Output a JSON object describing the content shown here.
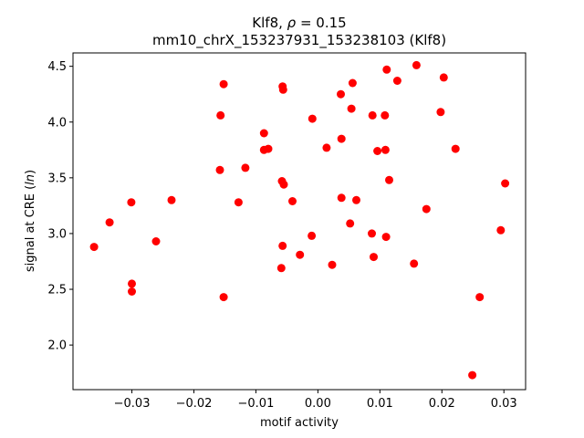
{
  "chart_data": {
    "type": "scatter",
    "title_line1_prefix": "Klf8, ",
    "title_line1_rho": "ρ",
    "title_line1_suffix": " = 0.15",
    "title_line2": "mm10_chrX_153237931_153238103 (Klf8)",
    "xlabel": "motif activity",
    "ylabel_prefix": "signal at CRE (",
    "ylabel_italic": "ln",
    "ylabel_suffix": ")",
    "xlim": [
      -0.0395,
      0.0335
    ],
    "ylim": [
      1.6,
      4.62
    ],
    "xticks": [
      -0.03,
      -0.02,
      -0.01,
      0.0,
      0.01,
      0.02,
      0.03
    ],
    "xtick_labels": [
      "−0.03",
      "−0.02",
      "−0.01",
      "0.00",
      "0.01",
      "0.02",
      "0.03"
    ],
    "yticks": [
      2.0,
      2.5,
      3.0,
      3.5,
      4.0,
      4.5
    ],
    "ytick_labels": [
      "2.0",
      "2.5",
      "3.0",
      "3.5",
      "4.0",
      "4.5"
    ],
    "grid": false,
    "marker_color": "#ff0000",
    "points": [
      {
        "x": -0.0361,
        "y": 2.88
      },
      {
        "x": -0.0336,
        "y": 3.1
      },
      {
        "x": -0.0301,
        "y": 3.28
      },
      {
        "x": -0.03,
        "y": 2.55
      },
      {
        "x": -0.03,
        "y": 2.48
      },
      {
        "x": -0.0261,
        "y": 2.93
      },
      {
        "x": -0.0236,
        "y": 3.3
      },
      {
        "x": -0.0157,
        "y": 4.06
      },
      {
        "x": -0.0158,
        "y": 3.57
      },
      {
        "x": -0.0152,
        "y": 4.34
      },
      {
        "x": -0.0152,
        "y": 2.43
      },
      {
        "x": -0.0128,
        "y": 3.28
      },
      {
        "x": -0.0117,
        "y": 3.59
      },
      {
        "x": -0.0087,
        "y": 3.9
      },
      {
        "x": -0.0087,
        "y": 3.75
      },
      {
        "x": -0.008,
        "y": 3.76
      },
      {
        "x": -0.0057,
        "y": 4.32
      },
      {
        "x": -0.0056,
        "y": 4.29
      },
      {
        "x": -0.0058,
        "y": 3.47
      },
      {
        "x": -0.0055,
        "y": 3.44
      },
      {
        "x": -0.0041,
        "y": 3.29
      },
      {
        "x": -0.0057,
        "y": 2.89
      },
      {
        "x": -0.0059,
        "y": 2.69
      },
      {
        "x": -0.0029,
        "y": 2.81
      },
      {
        "x": -0.0009,
        "y": 4.03
      },
      {
        "x": -0.001,
        "y": 2.98
      },
      {
        "x": 0.0014,
        "y": 3.77
      },
      {
        "x": 0.0023,
        "y": 2.72
      },
      {
        "x": 0.0037,
        "y": 4.25
      },
      {
        "x": 0.0038,
        "y": 3.85
      },
      {
        "x": 0.0038,
        "y": 3.32
      },
      {
        "x": 0.0056,
        "y": 4.35
      },
      {
        "x": 0.0054,
        "y": 4.12
      },
      {
        "x": 0.0052,
        "y": 3.09
      },
      {
        "x": 0.0062,
        "y": 3.3
      },
      {
        "x": 0.0088,
        "y": 4.06
      },
      {
        "x": 0.0087,
        "y": 3.0
      },
      {
        "x": 0.009,
        "y": 2.79
      },
      {
        "x": 0.0096,
        "y": 3.74
      },
      {
        "x": 0.0108,
        "y": 4.06
      },
      {
        "x": 0.0111,
        "y": 4.47
      },
      {
        "x": 0.0109,
        "y": 3.75
      },
      {
        "x": 0.0115,
        "y": 3.48
      },
      {
        "x": 0.011,
        "y": 2.97
      },
      {
        "x": 0.0128,
        "y": 4.37
      },
      {
        "x": 0.0155,
        "y": 2.73
      },
      {
        "x": 0.0159,
        "y": 4.51
      },
      {
        "x": 0.0175,
        "y": 3.22
      },
      {
        "x": 0.0198,
        "y": 4.09
      },
      {
        "x": 0.0203,
        "y": 4.4
      },
      {
        "x": 0.0222,
        "y": 3.76
      },
      {
        "x": 0.0249,
        "y": 1.73
      },
      {
        "x": 0.0261,
        "y": 2.43
      },
      {
        "x": 0.0295,
        "y": 3.03
      },
      {
        "x": 0.0302,
        "y": 3.45
      }
    ]
  }
}
